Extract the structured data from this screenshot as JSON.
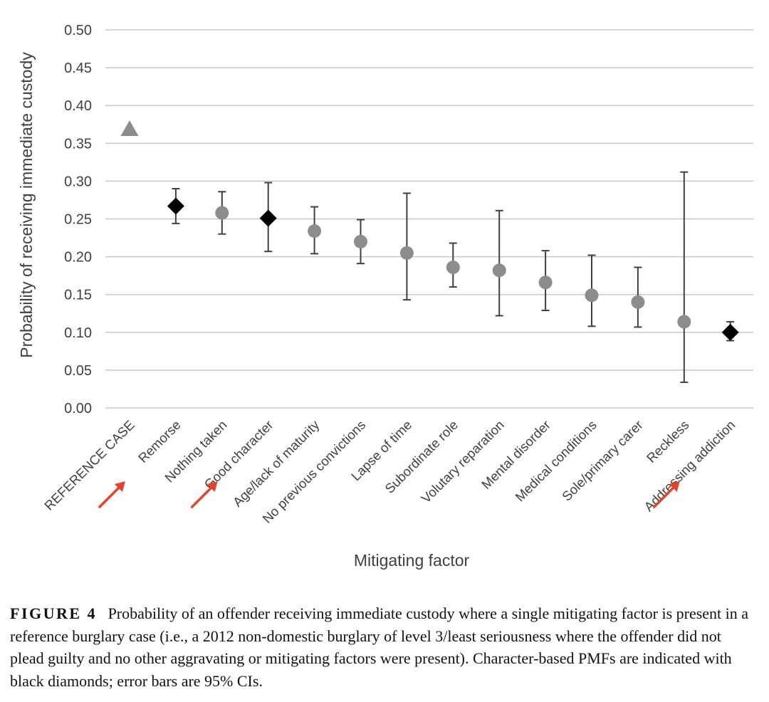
{
  "chart_data": {
    "type": "scatter",
    "title": "",
    "xlabel": "Mitigating factor",
    "ylabel": "Probability of receiving immediate custody",
    "ylim": [
      0,
      0.5
    ],
    "yticks": [
      "0.00",
      "0.05",
      "0.10",
      "0.15",
      "0.20",
      "0.25",
      "0.30",
      "0.35",
      "0.40",
      "0.45",
      "0.50"
    ],
    "grid": true,
    "categories": [
      "REFERENCE CASE",
      "Remorse",
      "Nothing taken",
      "Good character",
      "Age/lack of maturity",
      "No previous convictions",
      "Lapse of time",
      "Subordinate role",
      "Volutary reparation",
      "Mental disorder",
      "Medical conditions",
      "Sole/primary carer",
      "Reckless",
      "Addressing addiction"
    ],
    "values": [
      0.37,
      0.267,
      0.258,
      0.251,
      0.234,
      0.22,
      0.205,
      0.186,
      0.182,
      0.166,
      0.149,
      0.14,
      0.114,
      0.1
    ],
    "ci_low": [
      null,
      0.244,
      0.23,
      0.207,
      0.204,
      0.191,
      0.143,
      0.16,
      0.122,
      0.129,
      0.108,
      0.107,
      0.034,
      0.089
    ],
    "ci_high": [
      null,
      0.29,
      0.286,
      0.298,
      0.266,
      0.249,
      0.284,
      0.218,
      0.261,
      0.208,
      0.202,
      0.186,
      0.312,
      0.114
    ],
    "markers": [
      "triangle",
      "diamond",
      "circle",
      "diamond",
      "circle",
      "circle",
      "circle",
      "circle",
      "circle",
      "circle",
      "circle",
      "circle",
      "circle",
      "diamond"
    ],
    "highlighted": [
      false,
      true,
      false,
      true,
      false,
      false,
      false,
      false,
      false,
      false,
      false,
      false,
      false,
      true
    ],
    "colors": {
      "circle": "#8c8c8c",
      "diamond": "#000000",
      "triangle": "#8c8c8c",
      "errorbar": "#404040",
      "arrow": "#e5442b",
      "grid": "#c8c8c8"
    }
  },
  "caption": {
    "label": "FIGURE 4",
    "text": "Probability of an offender receiving immediate custody where a single mitigating factor is present in a reference burglary case (i.e., a 2012 non-domestic burglary of level 3/least seriousness where the offender did not plead guilty and no other aggravating or mitigating factors were present). Character-based PMFs are indicated with black diamonds; error bars are 95% CIs."
  }
}
